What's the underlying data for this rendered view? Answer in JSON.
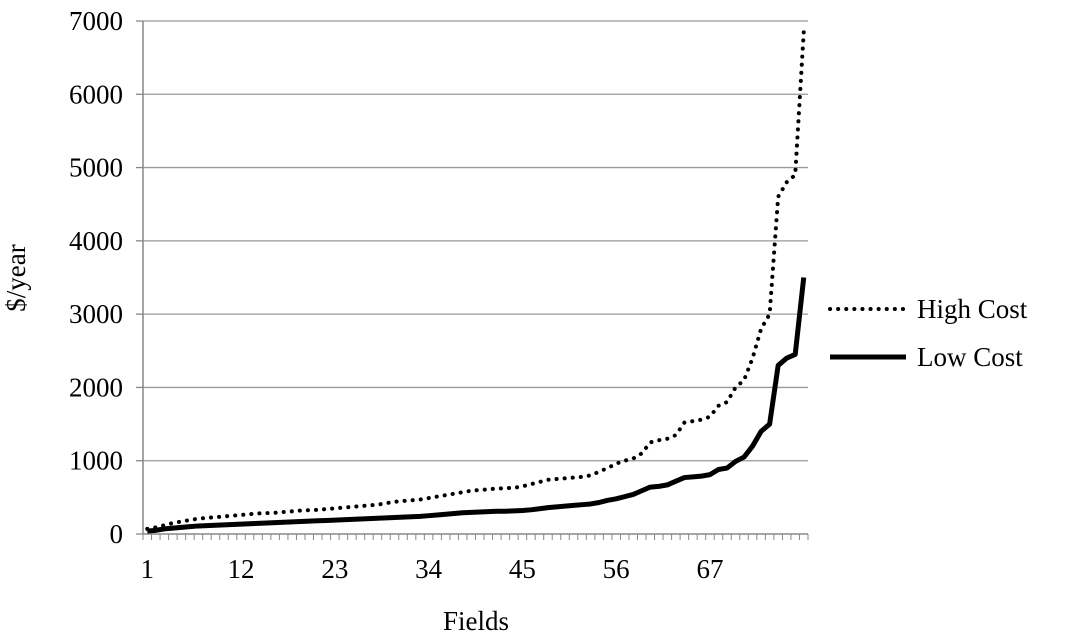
{
  "chart_data": {
    "type": "line",
    "title": "",
    "xlabel": "Fields",
    "ylabel": "$/year",
    "xlim": [
      1,
      78
    ],
    "ylim": [
      0,
      7000
    ],
    "x_ticks": [
      1,
      12,
      23,
      34,
      45,
      56,
      67
    ],
    "y_ticks": [
      0,
      1000,
      2000,
      3000,
      4000,
      5000,
      6000,
      7000
    ],
    "x_tick_labels": [
      "1",
      "12",
      "23",
      "34",
      "45",
      "56",
      "67"
    ],
    "y_tick_labels": [
      "0",
      "1000",
      "2000",
      "3000",
      "4000",
      "5000",
      "6000",
      "7000"
    ],
    "grid": "horizontal",
    "legend_position": "right",
    "series": [
      {
        "name": "High Cost",
        "style": "dotted",
        "color": "#000000",
        "x": [
          1,
          2,
          3,
          4,
          5,
          6,
          7,
          8,
          9,
          10,
          11,
          12,
          13,
          14,
          15,
          16,
          17,
          18,
          19,
          20,
          21,
          22,
          23,
          24,
          25,
          26,
          27,
          28,
          29,
          30,
          31,
          32,
          33,
          34,
          35,
          36,
          37,
          38,
          39,
          40,
          41,
          42,
          43,
          44,
          45,
          46,
          47,
          48,
          49,
          50,
          51,
          52,
          53,
          54,
          55,
          56,
          57,
          58,
          59,
          60,
          61,
          62,
          63,
          64,
          65,
          66,
          67,
          68,
          69,
          70,
          71,
          72,
          73,
          74,
          75,
          76,
          77,
          78
        ],
        "y": [
          70,
          90,
          120,
          150,
          170,
          190,
          210,
          220,
          230,
          240,
          250,
          260,
          270,
          280,
          285,
          290,
          300,
          310,
          320,
          325,
          330,
          340,
          350,
          360,
          370,
          380,
          390,
          400,
          420,
          440,
          450,
          460,
          470,
          490,
          510,
          530,
          550,
          570,
          590,
          600,
          610,
          620,
          625,
          630,
          650,
          680,
          710,
          740,
          750,
          760,
          770,
          780,
          800,
          850,
          900,
          960,
          1000,
          1030,
          1100,
          1250,
          1280,
          1300,
          1350,
          1520,
          1540,
          1560,
          1600,
          1750,
          1800,
          2000,
          2100,
          2400,
          2800,
          3000,
          4600,
          4800,
          4900,
          6850
        ]
      },
      {
        "name": "Low Cost",
        "style": "solid",
        "color": "#000000",
        "x": [
          1,
          2,
          3,
          4,
          5,
          6,
          7,
          8,
          9,
          10,
          11,
          12,
          13,
          14,
          15,
          16,
          17,
          18,
          19,
          20,
          21,
          22,
          23,
          24,
          25,
          26,
          27,
          28,
          29,
          30,
          31,
          32,
          33,
          34,
          35,
          36,
          37,
          38,
          39,
          40,
          41,
          42,
          43,
          44,
          45,
          46,
          47,
          48,
          49,
          50,
          51,
          52,
          53,
          54,
          55,
          56,
          57,
          58,
          59,
          60,
          61,
          62,
          63,
          64,
          65,
          66,
          67,
          68,
          69,
          70,
          71,
          72,
          73,
          74,
          75,
          76,
          77,
          78
        ],
        "y": [
          40,
          50,
          70,
          80,
          90,
          100,
          110,
          115,
          120,
          125,
          130,
          135,
          140,
          145,
          150,
          155,
          160,
          165,
          170,
          175,
          180,
          185,
          190,
          195,
          200,
          205,
          210,
          215,
          220,
          225,
          230,
          235,
          240,
          250,
          260,
          270,
          280,
          290,
          295,
          300,
          305,
          310,
          310,
          315,
          320,
          330,
          345,
          360,
          370,
          380,
          390,
          400,
          410,
          430,
          460,
          480,
          510,
          540,
          590,
          640,
          650,
          670,
          720,
          770,
          780,
          790,
          810,
          880,
          900,
          990,
          1050,
          1200,
          1400,
          1500,
          2300,
          2400,
          2450,
          3500
        ]
      }
    ]
  }
}
